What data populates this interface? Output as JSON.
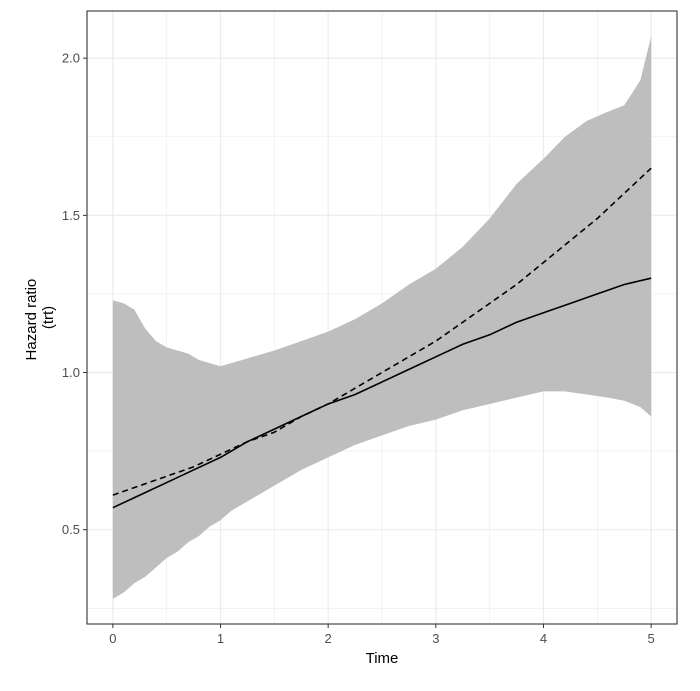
{
  "chart_data": {
    "type": "line",
    "xlabel": "Time",
    "ylabel_lines": [
      "Hazard ratio",
      "(trt)"
    ],
    "xlim": [
      -0.24,
      5.24
    ],
    "ylim": [
      0.2,
      2.15
    ],
    "x_ticks": [
      0,
      1,
      2,
      3,
      4,
      5
    ],
    "x_tick_labels": [
      "0",
      "1",
      "2",
      "3",
      "4",
      "5"
    ],
    "y_ticks": [
      0.5,
      1.0,
      1.5,
      2.0
    ],
    "y_tick_labels": [
      "0.5",
      "1.0",
      "1.5",
      "2.0"
    ],
    "grid": true,
    "colors": {
      "band": "#bebebe",
      "line": "#000000",
      "grid": "#ebebeb",
      "panel_border": "#333333"
    },
    "band": {
      "x": [
        0,
        0.1,
        0.2,
        0.3,
        0.4,
        0.5,
        0.6,
        0.7,
        0.8,
        0.9,
        1.0,
        1.1,
        1.2,
        1.3,
        1.5,
        1.75,
        2.0,
        2.25,
        2.5,
        2.75,
        3.0,
        3.25,
        3.5,
        3.75,
        4.0,
        4.2,
        4.4,
        4.6,
        4.75,
        4.9,
        5.0
      ],
      "upper": [
        1.23,
        1.22,
        1.2,
        1.14,
        1.1,
        1.08,
        1.07,
        1.06,
        1.04,
        1.03,
        1.02,
        1.03,
        1.04,
        1.05,
        1.07,
        1.1,
        1.13,
        1.17,
        1.22,
        1.28,
        1.33,
        1.4,
        1.49,
        1.6,
        1.68,
        1.75,
        1.8,
        1.83,
        1.85,
        1.93,
        2.07
      ],
      "lower": [
        0.28,
        0.3,
        0.33,
        0.35,
        0.38,
        0.41,
        0.43,
        0.46,
        0.48,
        0.51,
        0.53,
        0.56,
        0.58,
        0.6,
        0.64,
        0.69,
        0.73,
        0.77,
        0.8,
        0.83,
        0.85,
        0.88,
        0.9,
        0.92,
        0.94,
        0.94,
        0.93,
        0.92,
        0.91,
        0.89,
        0.86
      ]
    },
    "series": [
      {
        "style": "solid",
        "x": [
          0,
          0.25,
          0.5,
          0.75,
          1.0,
          1.25,
          1.5,
          1.75,
          2.0,
          2.25,
          2.5,
          2.75,
          3.0,
          3.25,
          3.5,
          3.75,
          4.0,
          4.25,
          4.5,
          4.75,
          5.0
        ],
        "y": [
          0.57,
          0.61,
          0.65,
          0.69,
          0.73,
          0.78,
          0.82,
          0.86,
          0.9,
          0.93,
          0.97,
          1.01,
          1.05,
          1.09,
          1.12,
          1.16,
          1.19,
          1.22,
          1.25,
          1.28,
          1.3
        ]
      },
      {
        "style": "dashed",
        "x": [
          0,
          0.25,
          0.5,
          0.75,
          1.0,
          1.25,
          1.5,
          1.75,
          2.0,
          2.25,
          2.5,
          2.75,
          3.0,
          3.25,
          3.5,
          3.75,
          4.0,
          4.25,
          4.5,
          4.75,
          5.0
        ],
        "y": [
          0.61,
          0.64,
          0.67,
          0.7,
          0.74,
          0.78,
          0.81,
          0.86,
          0.9,
          0.95,
          1.0,
          1.05,
          1.1,
          1.16,
          1.22,
          1.28,
          1.35,
          1.42,
          1.49,
          1.57,
          1.65
        ]
      }
    ]
  }
}
